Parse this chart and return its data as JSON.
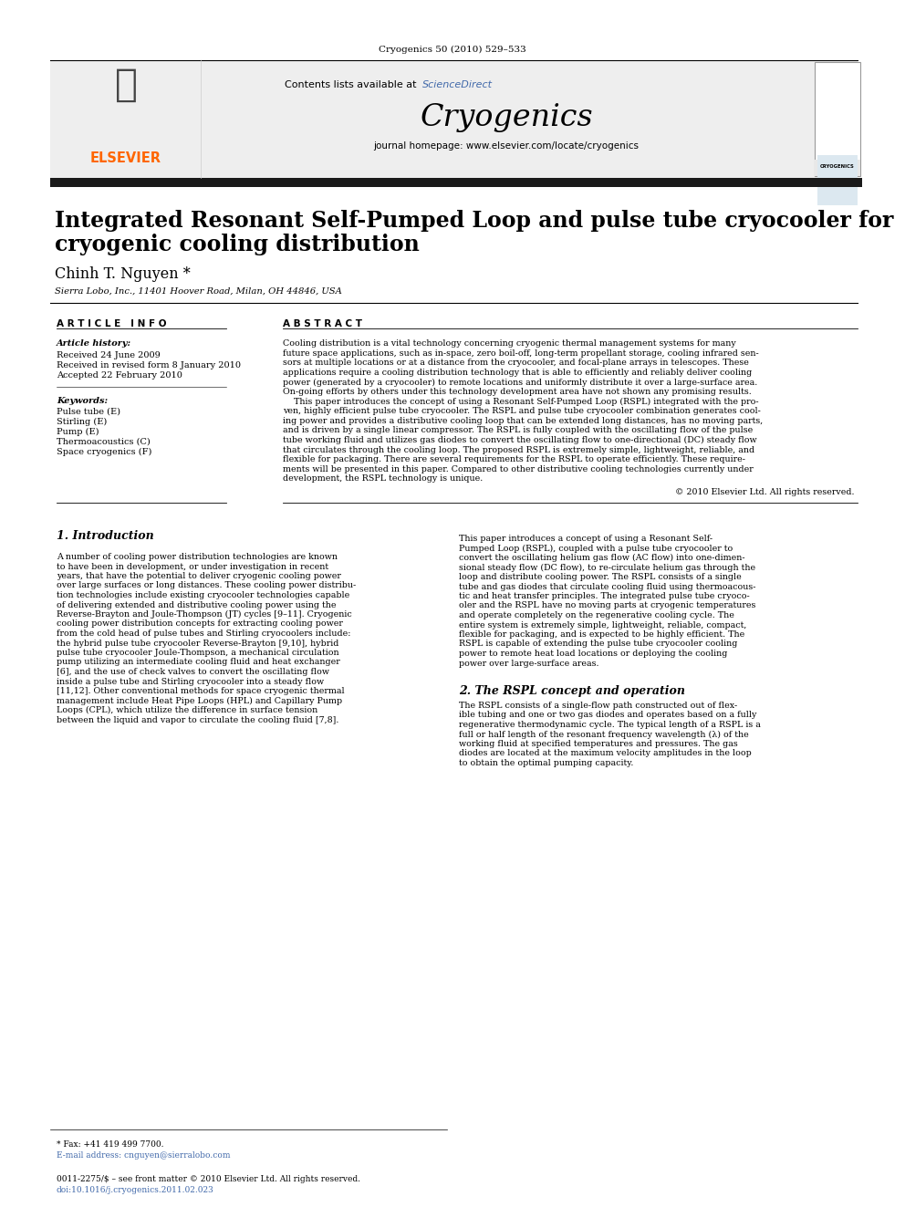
{
  "journal_header": "Cryogenics 50 (2010) 529–533",
  "contents_line": "Contents lists available at ",
  "sciencedirect_text": "ScienceDirect",
  "sciencedirect_color": "#4169aa",
  "journal_name": "Cryogenics",
  "journal_homepage": "journal homepage: www.elsevier.com/locate/cryogenics",
  "elsevier_color": "#ff6600",
  "title_line1": "Integrated Resonant Self-Pumped Loop and pulse tube cryocooler for",
  "title_line2": "cryogenic cooling distribution",
  "author": "Chinh T. Nguyen *",
  "affiliation": "Sierra Lobo, Inc., 11401 Hoover Road, Milan, OH 44846, USA",
  "article_info_header": "A R T I C L E   I N F O",
  "abstract_header": "A B S T R A C T",
  "article_history_label": "Article history:",
  "received": "Received 24 June 2009",
  "received_revised": "Received in revised form 8 January 2010",
  "accepted": "Accepted 22 February 2010",
  "keywords_label": "Keywords:",
  "keywords": [
    "Pulse tube (E)",
    "Stirling (E)",
    "Pump (E)",
    "Thermoacoustics (C)",
    "Space cryogenics (F)"
  ],
  "abstract_lines": [
    "Cooling distribution is a vital technology concerning cryogenic thermal management systems for many",
    "future space applications, such as in-space, zero boil-off, long-term propellant storage, cooling infrared sen-",
    "sors at multiple locations or at a distance from the cryocooler, and focal-plane arrays in telescopes. These",
    "applications require a cooling distribution technology that is able to efficiently and reliably deliver cooling",
    "power (generated by a cryocooler) to remote locations and uniformly distribute it over a large-surface area.",
    "On-going efforts by others under this technology development area have not shown any promising results.",
    "    This paper introduces the concept of using a Resonant Self-Pumped Loop (RSPL) integrated with the pro-",
    "ven, highly efficient pulse tube cryocooler. The RSPL and pulse tube cryocooler combination generates cool-",
    "ing power and provides a distributive cooling loop that can be extended long distances, has no moving parts,",
    "and is driven by a single linear compressor. The RSPL is fully coupled with the oscillating flow of the pulse",
    "tube working fluid and utilizes gas diodes to convert the oscillating flow to one-directional (DC) steady flow",
    "that circulates through the cooling loop. The proposed RSPL is extremely simple, lightweight, reliable, and",
    "flexible for packaging. There are several requirements for the RSPL to operate efficiently. These require-",
    "ments will be presented in this paper. Compared to other distributive cooling technologies currently under",
    "development, the RSPL technology is unique."
  ],
  "copyright": "© 2010 Elsevier Ltd. All rights reserved.",
  "section1_title": "1. Introduction",
  "intro_col1_lines": [
    "A number of cooling power distribution technologies are known",
    "to have been in development, or under investigation in recent",
    "years, that have the potential to deliver cryogenic cooling power",
    "over large surfaces or long distances. These cooling power distribu-",
    "tion technologies include existing cryocooler technologies capable",
    "of delivering extended and distributive cooling power using the",
    "Reverse-Brayton and Joule-Thompson (JT) cycles [9–11]. Cryogenic",
    "cooling power distribution concepts for extracting cooling power",
    "from the cold head of pulse tubes and Stirling cryocoolers include:",
    "the hybrid pulse tube cryocooler Reverse-Brayton [9,10], hybrid",
    "pulse tube cryocooler Joule-Thompson, a mechanical circulation",
    "pump utilizing an intermediate cooling fluid and heat exchanger",
    "[6], and the use of check valves to convert the oscillating flow",
    "inside a pulse tube and Stirling cryocooler into a steady flow",
    "[11,12]. Other conventional methods for space cryogenic thermal",
    "management include Heat Pipe Loops (HPL) and Capillary Pump",
    "Loops (CPL), which utilize the difference in surface tension",
    "between the liquid and vapor to circulate the cooling fluid [7,8]."
  ],
  "intro_col2_lines": [
    "This paper introduces a concept of using a Resonant Self-",
    "Pumped Loop (RSPL), coupled with a pulse tube cryocooler to",
    "convert the oscillating helium gas flow (AC flow) into one-dimen-",
    "sional steady flow (DC flow), to re-circulate helium gas through the",
    "loop and distribute cooling power. The RSPL consists of a single",
    "tube and gas diodes that circulate cooling fluid using thermoacous-",
    "tic and heat transfer principles. The integrated pulse tube cryoco-",
    "oler and the RSPL have no moving parts at cryogenic temperatures",
    "and operate completely on the regenerative cooling cycle. The",
    "entire system is extremely simple, lightweight, reliable, compact,",
    "flexible for packaging, and is expected to be highly efficient. The",
    "RSPL is capable of extending the pulse tube cryocooler cooling",
    "power to remote heat load locations or deploying the cooling",
    "power over large-surface areas."
  ],
  "section2_title": "2. The RSPL concept and operation",
  "sec2_col2_lines": [
    "The RSPL consists of a single-flow path constructed out of flex-",
    "ible tubing and one or two gas diodes and operates based on a fully",
    "regenerative thermodynamic cycle. The typical length of a RSPL is a",
    "full or half length of the resonant frequency wavelength (λ) of the",
    "working fluid at specified temperatures and pressures. The gas",
    "diodes are located at the maximum velocity amplitudes in the loop",
    "to obtain the optimal pumping capacity."
  ],
  "footer_fax": "* Fax: +41 419 499 7700.",
  "footer_email": "E-mail address: cnguyen@sierralobo.com",
  "footer_issn": "0011-2275/$ – see front matter © 2010 Elsevier Ltd. All rights reserved.",
  "footer_doi": "doi:10.1016/j.cryogenics.2011.02.023",
  "bg_color": "#ffffff",
  "header_bg": "#eeeeee",
  "elsevier_bar_color": "#1a1a1a",
  "cover_bg": "#dce8f0"
}
